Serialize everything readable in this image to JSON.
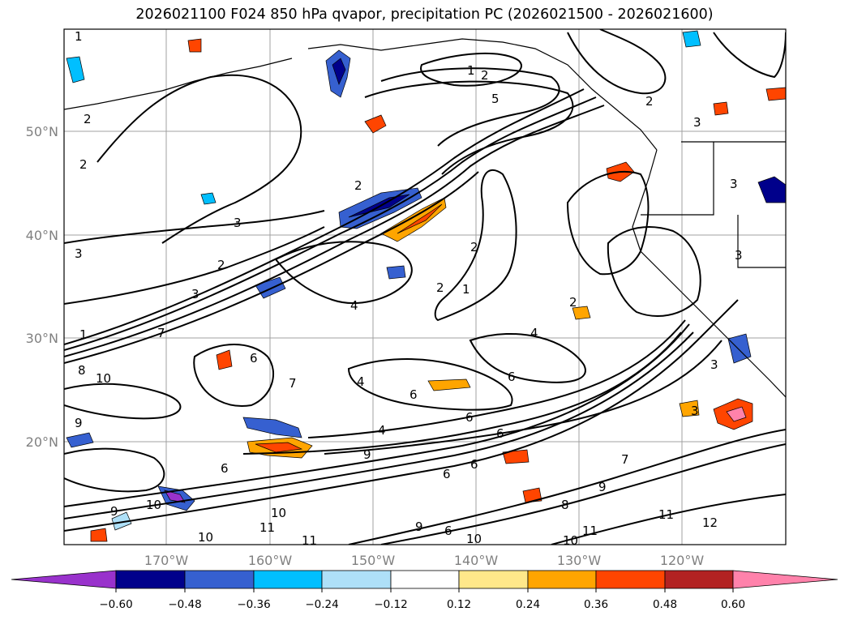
{
  "title": "2026021100 F024 850 hPa qvapor, precipitation PC (2026021500 - 2026021600)",
  "map": {
    "lat_labels": [
      "50°N",
      "40°N",
      "30°N",
      "20°N"
    ],
    "lon_labels": [
      "170°W",
      "160°W",
      "150°W",
      "140°W",
      "130°W",
      "120°W"
    ],
    "gridline_color": "#a0a0a0"
  },
  "colorbar": {
    "tick_labels": [
      "−0.60",
      "−0.48",
      "−0.36",
      "−0.24",
      "−0.12",
      "0.12",
      "0.24",
      "0.36",
      "0.48",
      "0.60"
    ],
    "colors": [
      "#9932cc",
      "#00008b",
      "#3660d0",
      "#00bfff",
      "#aee0f8",
      "#ffffff",
      "#ffe88a",
      "#ffa500",
      "#ff4500",
      "#b22222",
      "#ff82ab"
    ]
  },
  "contour_labels": [
    "1",
    "2",
    "1",
    "2",
    "5",
    "2",
    "2",
    "2",
    "3",
    "3",
    "2",
    "3",
    "1",
    "7",
    "1",
    "2",
    "2",
    "4",
    "4",
    "6",
    "6",
    "8",
    "10",
    "9",
    "6",
    "7",
    "4",
    "6",
    "6",
    "6",
    "6",
    "4",
    "9",
    "6",
    "9",
    "10",
    "9",
    "10",
    "11",
    "10",
    "11",
    "6",
    "9",
    "11",
    "8",
    "7",
    "10",
    "11",
    "12",
    "10",
    "3",
    "3",
    "3",
    "3",
    "3",
    "2"
  ],
  "chart_data": {
    "type": "heatmap",
    "title": "2026021100 F024 850 hPa qvapor, precipitation PC (2026021500 - 2026021600)",
    "xlabel": "",
    "ylabel": "",
    "x_ticks": [
      "170°W",
      "160°W",
      "150°W",
      "140°W",
      "130°W",
      "120°W"
    ],
    "y_ticks": [
      "50°N",
      "40°N",
      "30°N",
      "20°N"
    ],
    "grid": true,
    "colorbar_levels": [
      -0.6,
      -0.48,
      -0.36,
      -0.24,
      -0.12,
      0.12,
      0.24,
      0.36,
      0.48,
      0.6
    ],
    "contour_variable": "850 hPa qvapor",
    "shaded_variable": "precipitation PC"
  }
}
